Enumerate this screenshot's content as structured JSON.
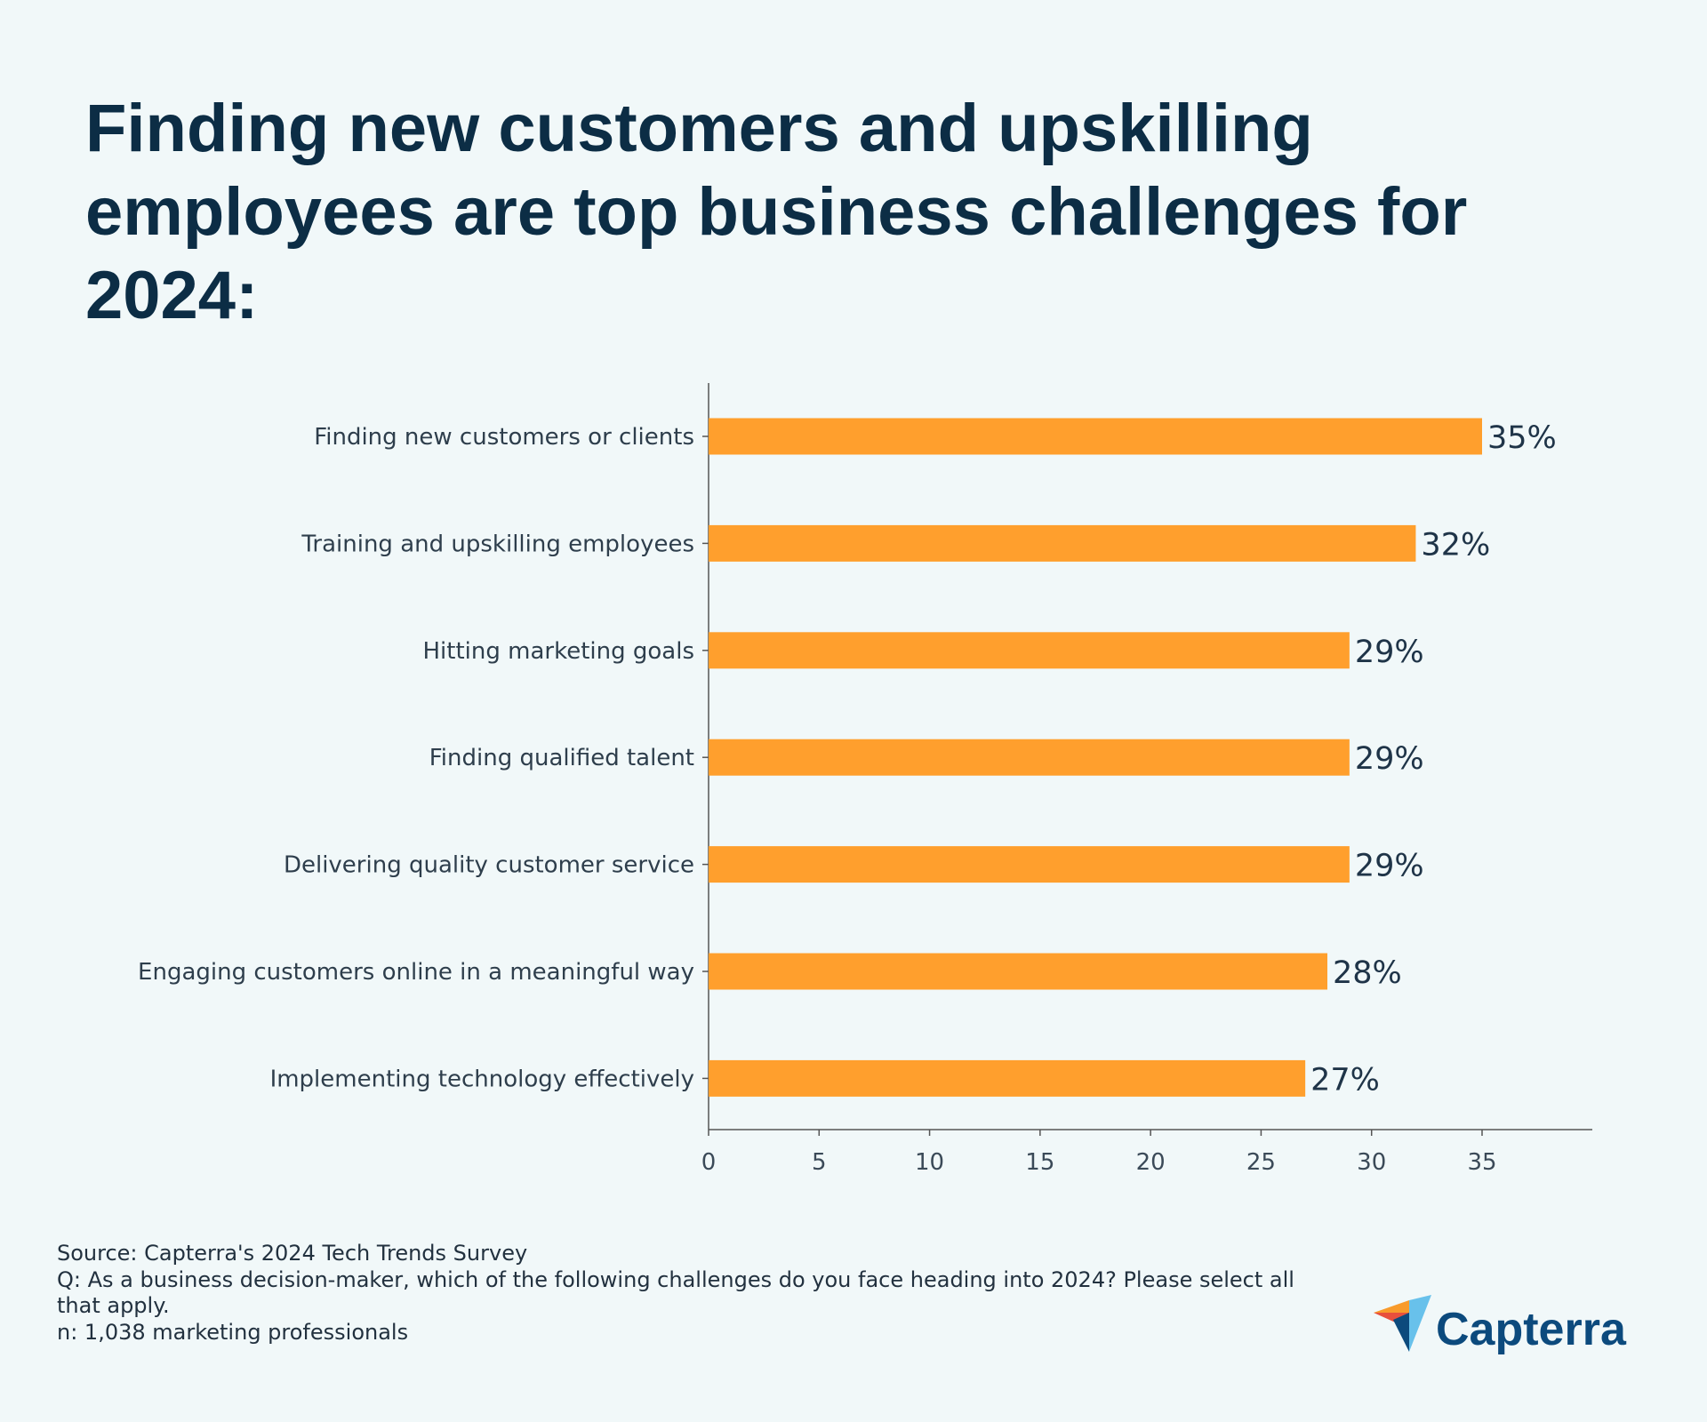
{
  "title": "Finding new customers and upskilling employees are top business challenges for 2024:",
  "chart_data": {
    "type": "bar",
    "orientation": "horizontal",
    "categories": [
      "Finding new customers or clients",
      "Training and upskilling employees",
      "Hitting marketing goals",
      "Finding qualified talent",
      "Delivering quality customer service",
      "Engaging customers online in a meaningful way",
      "Implementing technology effectively"
    ],
    "values": [
      35,
      32,
      29,
      29,
      29,
      28,
      27
    ],
    "value_labels": [
      "35%",
      "32%",
      "29%",
      "29%",
      "29%",
      "28%",
      "27%"
    ],
    "xticks": [
      0,
      5,
      10,
      15,
      20,
      25,
      30,
      35
    ],
    "xlim": [
      0,
      40
    ],
    "grid": false,
    "bar_color": "#ff9f2d"
  },
  "footer": {
    "source": "Source: Capterra's 2024 Tech Trends Survey",
    "question": "Q: As a business decision-maker, which of the following challenges do you face heading into 2024? Please select all that apply.",
    "n": "n: 1,038 marketing professionals"
  },
  "logo": {
    "text": "Capterra",
    "color": "#0c4a7d"
  }
}
